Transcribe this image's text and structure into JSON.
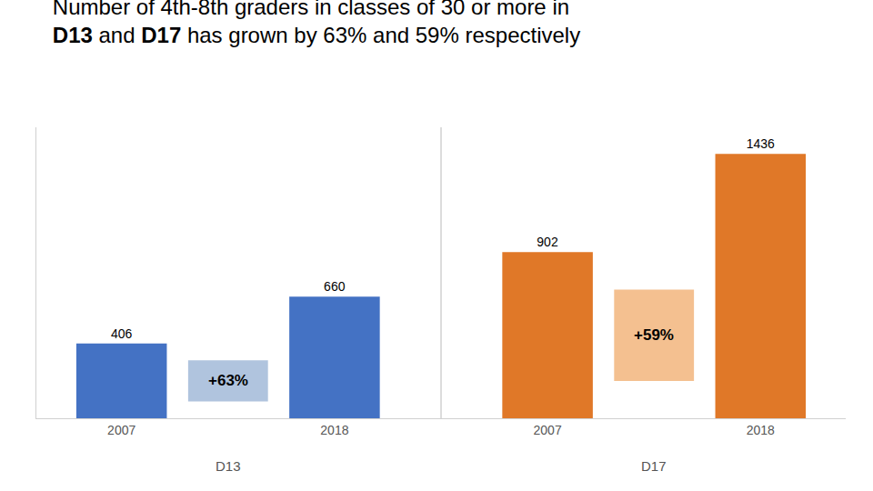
{
  "chart_data": {
    "type": "bar",
    "title_lines": [
      [
        {
          "text": "Number of 4th-8th graders in classes of 30 or more in",
          "bold": false
        }
      ],
      [
        {
          "text": "D13",
          "bold": true
        },
        {
          "text": " and ",
          "bold": false
        },
        {
          "text": "D17",
          "bold": true
        },
        {
          "text": " has grown by 63% and 59% respectively",
          "bold": false
        }
      ]
    ],
    "categories": [
      "2007",
      "2018",
      "2007",
      "2018"
    ],
    "series": [
      {
        "name": "D13",
        "color": "#4472C4",
        "values": [
          406,
          660,
          null,
          null
        ]
      },
      {
        "name": "D17",
        "color": "#E07828",
        "values": [
          null,
          null,
          902,
          1436
        ]
      }
    ],
    "annotations": [
      {
        "series": "D13",
        "text": "+63%",
        "color": "#B0C4DE"
      },
      {
        "series": "D17",
        "text": "+59%",
        "color": "#F4C090"
      }
    ],
    "ylim": [
      0,
      1580
    ],
    "yticks": [],
    "grid": false,
    "data_labels": true,
    "tick_labels": "x"
  }
}
